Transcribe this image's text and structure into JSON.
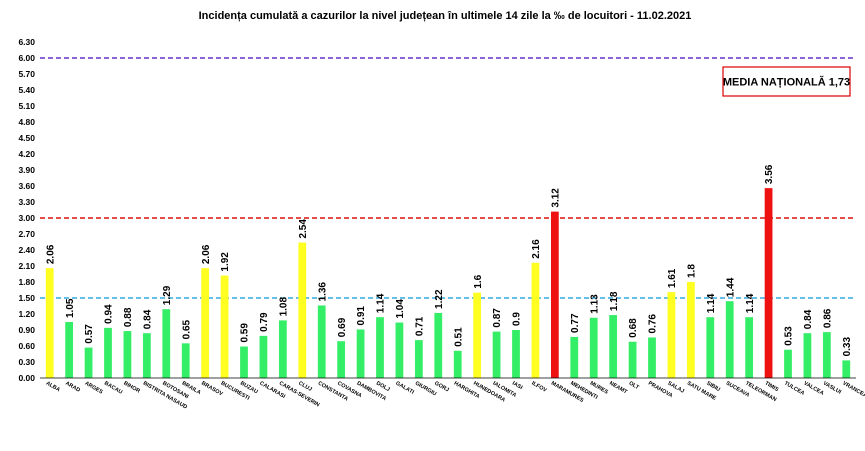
{
  "colors": {
    "green": "#33ee66",
    "yellow": "#ffff22",
    "red": "#ee1111",
    "purple_line": "#6633cc",
    "red_line": "#dd1111",
    "blue_line": "#33aadd",
    "annotation_border": "#dd0000",
    "axis": "#000000"
  },
  "chart_data": {
    "type": "bar",
    "title": "Incidența cumulată a cazurilor la nivel județean în ultimele 14 zile la ‰ de locuitori - 11.02.2021",
    "xlabel": "",
    "ylabel": "",
    "ylim": [
      0,
      6.3
    ],
    "yticks": [
      "0.00",
      "0.30",
      "0.60",
      "0.90",
      "1.20",
      "1.50",
      "1.80",
      "2.10",
      "2.40",
      "2.70",
      "3.00",
      "3.30",
      "3.60",
      "3.90",
      "4.20",
      "4.50",
      "4.80",
      "5.10",
      "5.40",
      "5.70",
      "6.00",
      "6.30"
    ],
    "grid": false,
    "reference_lines": [
      {
        "value": 6.0,
        "style": "dashed",
        "color": "purple"
      },
      {
        "value": 3.0,
        "style": "dashed",
        "color": "red"
      },
      {
        "value": 1.5,
        "style": "dashed",
        "color": "blue"
      }
    ],
    "annotation": "MEDIA NAȚIONALĂ 1,73",
    "categories": [
      "ALBA",
      "ARAD",
      "ARGES",
      "BACAU",
      "BIHOR",
      "BISTRITA NASAUD",
      "BOTOSANI",
      "BRAILA",
      "BRASOV",
      "BUCURESTI",
      "BUZAU",
      "CALARASI",
      "CARAS-SEVERIN",
      "CLUJ",
      "CONSTANTA",
      "COVASNA",
      "DAMBOVITA",
      "DOLJ",
      "GALATI",
      "GIURGIU",
      "GORJ",
      "HARGHITA",
      "HUNEDOARA",
      "IALOMITA",
      "IASI",
      "ILFOV",
      "MARAMURES",
      "MEHEDINTI",
      "MURES",
      "NEAMT",
      "OLT",
      "PRAHOVA",
      "SALAJ",
      "SATU MARE",
      "SIBIU",
      "SUCEAVA",
      "TELEORMAN",
      "TIMIS",
      "TULCEA",
      "VALCEA",
      "VASLUI",
      "VRANCEA"
    ],
    "values": [
      2.06,
      1.05,
      0.57,
      0.94,
      0.88,
      0.84,
      1.29,
      0.65,
      2.06,
      1.92,
      0.59,
      0.79,
      1.08,
      2.54,
      1.36,
      0.69,
      0.91,
      1.14,
      1.04,
      0.71,
      1.22,
      0.51,
      1.6,
      0.87,
      0.9,
      2.16,
      3.12,
      0.77,
      1.13,
      1.18,
      0.68,
      0.76,
      1.61,
      1.8,
      1.14,
      1.44,
      1.14,
      3.56,
      0.53,
      0.84,
      0.86,
      0.33
    ],
    "labels": [
      "2.06",
      "1.05",
      "0.57",
      "0.94",
      "0.88",
      "0.84",
      "1.29",
      "0.65",
      "2.06",
      "1.92",
      "0.59",
      "0.79",
      "1.08",
      "2.54",
      "1.36",
      "0.69",
      "0.91",
      "1.14",
      "1.04",
      "0.71",
      "1.22",
      "0.51",
      "1.6",
      "0.87",
      "0.9",
      "2.16",
      "3.12",
      "0.77",
      "1.13",
      "1.18",
      "0.68",
      "0.76",
      "1.61",
      "1.8",
      "1.14",
      "1.44",
      "1.14",
      "3.56",
      "0.53",
      "0.84",
      "0.86",
      "0.33"
    ],
    "bar_colors": [
      "yellow",
      "green",
      "green",
      "green",
      "green",
      "green",
      "green",
      "green",
      "yellow",
      "yellow",
      "green",
      "green",
      "green",
      "yellow",
      "green",
      "green",
      "green",
      "green",
      "green",
      "green",
      "green",
      "green",
      "yellow",
      "green",
      "green",
      "yellow",
      "red",
      "green",
      "green",
      "green",
      "green",
      "green",
      "yellow",
      "yellow",
      "green",
      "green",
      "green",
      "red",
      "green",
      "green",
      "green",
      "green"
    ]
  }
}
